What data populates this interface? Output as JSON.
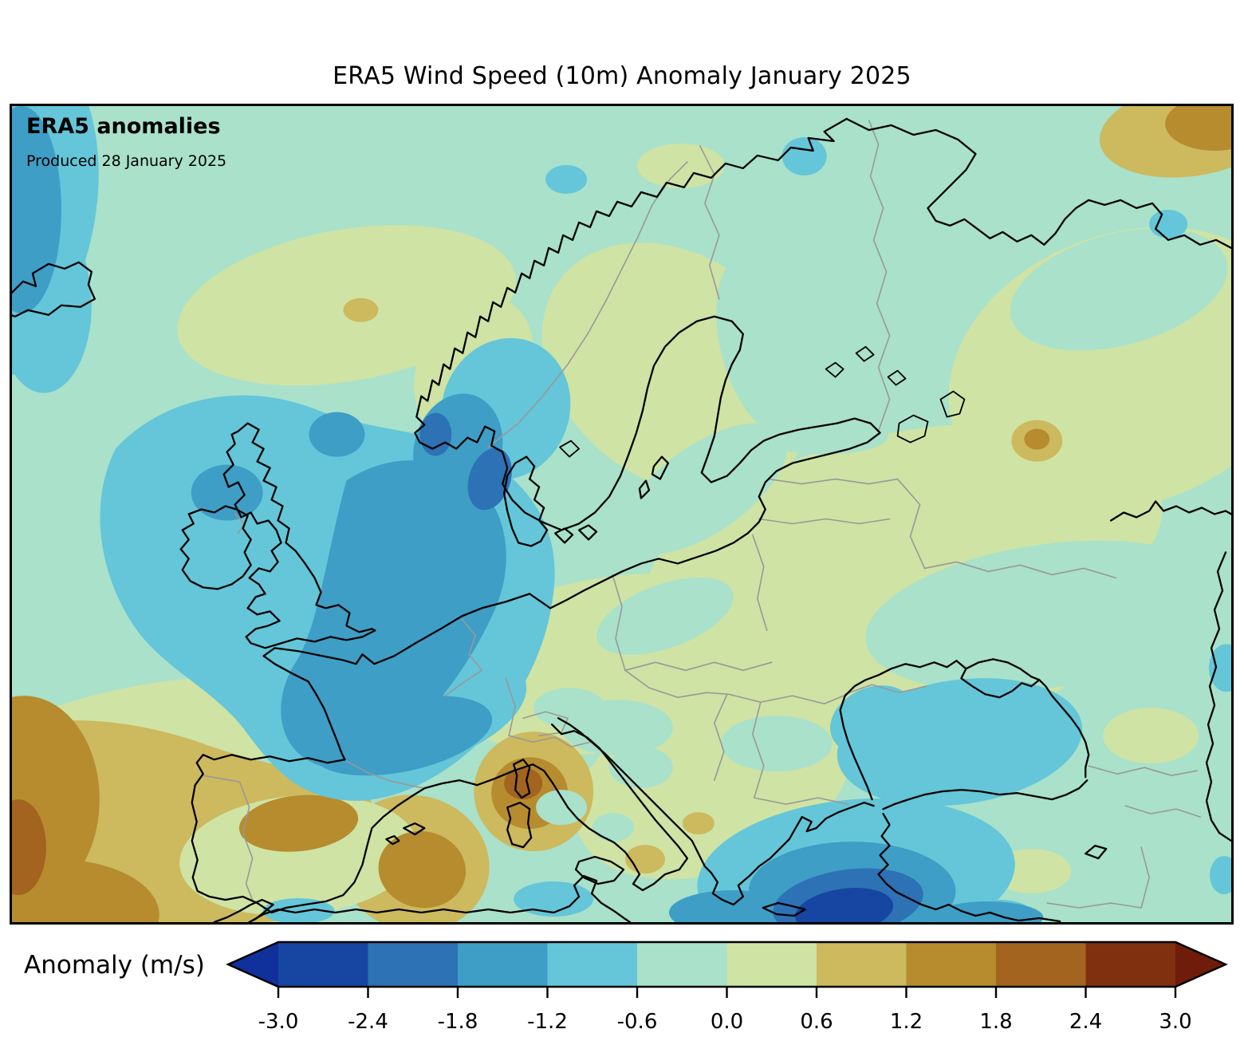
{
  "title": "ERA5 Wind Speed (10m) Anomaly January 2025",
  "map": {
    "heading": "ERA5 anomalies",
    "produced": "Produced 28 January 2025"
  },
  "colorbar": {
    "label": "Anomaly (m/s)",
    "ticks": [
      "-3.0",
      "-2.4",
      "-1.8",
      "-1.2",
      "-0.6",
      "0.0",
      "0.6",
      "1.2",
      "1.8",
      "2.4",
      "3.0"
    ],
    "levels": [
      {
        "range": "< -3.0",
        "hex": "#10309c"
      },
      {
        "range": "-3.0 to -2.4",
        "hex": "#1746a2"
      },
      {
        "range": "-2.4 to -1.8",
        "hex": "#2d72b4"
      },
      {
        "range": "-1.8 to -1.2",
        "hex": "#3e9ec6"
      },
      {
        "range": "-1.2 to -0.6",
        "hex": "#64c6d8"
      },
      {
        "range": "-0.6 to 0.0",
        "hex": "#a9e1cb"
      },
      {
        "range": "0.0 to 0.6",
        "hex": "#cfe3a4"
      },
      {
        "range": "0.6 to 1.2",
        "hex": "#cdb95e"
      },
      {
        "range": "1.2 to 1.8",
        "hex": "#b68c2e"
      },
      {
        "range": "1.8 to 2.4",
        "hex": "#a2641f"
      },
      {
        "range": "2.4 to 3.0",
        "hex": "#80300f"
      },
      {
        "range": "> 3.0",
        "hex": "#6f1d0a"
      }
    ]
  },
  "line_colors": {
    "coastline": "#000000",
    "borders": "#999999",
    "frame": "#000000",
    "tick": "#000000"
  }
}
